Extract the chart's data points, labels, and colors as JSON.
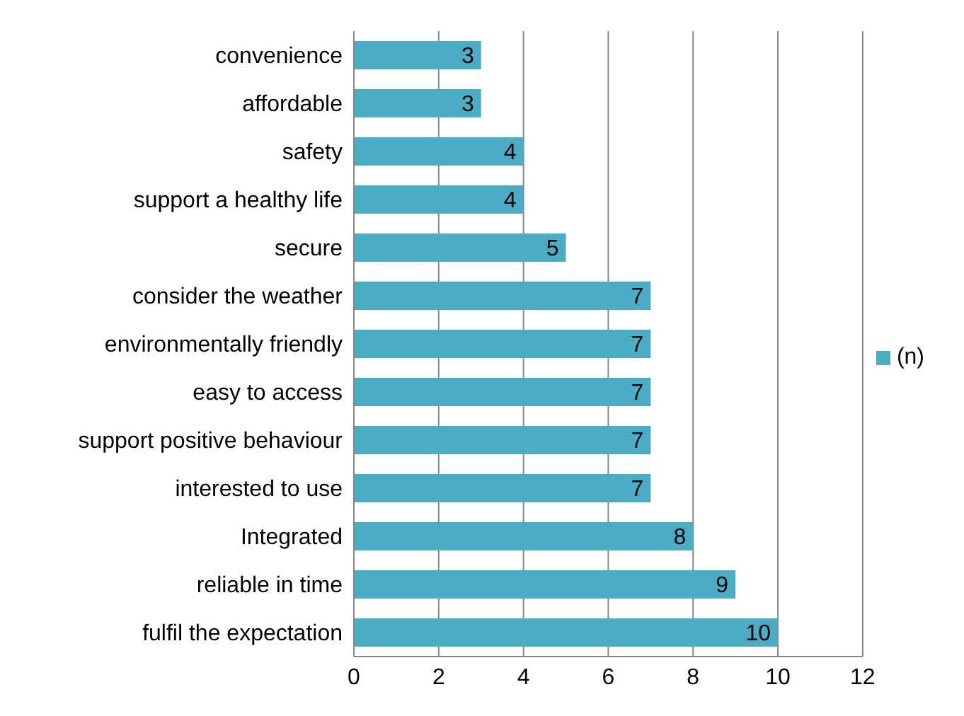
{
  "chart_data": {
    "type": "bar",
    "orientation": "horizontal",
    "categories": [
      "convenience",
      "affordable",
      "safety",
      "support a healthy life",
      "secure",
      "consider the weather",
      "environmentally friendly",
      "easy to access",
      "support positive behaviour",
      "interested to use",
      "Integrated",
      "reliable in time",
      "fulfil the expectation"
    ],
    "series": [
      {
        "name": "(n)",
        "color": "#4bacc6",
        "values": [
          3,
          3,
          4,
          4,
          5,
          7,
          7,
          7,
          7,
          7,
          8,
          9,
          10
        ]
      }
    ],
    "xlim": [
      0,
      12
    ],
    "xticks": [
      0,
      2,
      4,
      6,
      8,
      10,
      12
    ],
    "grid": "x",
    "legend": "right",
    "data_labels": true
  }
}
